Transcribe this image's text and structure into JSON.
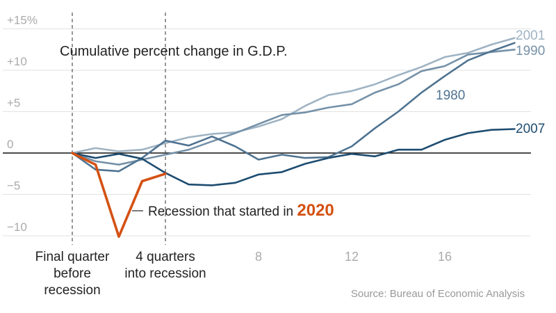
{
  "chart_data": {
    "type": "line",
    "title": "Cumulative percent change in G.D.P.",
    "source": "Source: Bureau of Economic Analysis",
    "xlim": [
      0,
      19
    ],
    "ylim": [
      -11,
      15.5
    ],
    "y_ticks": [
      {
        "value": 15,
        "label": "+15%"
      },
      {
        "value": 10,
        "label": "+10"
      },
      {
        "value": 5,
        "label": "+5"
      },
      {
        "value": 0,
        "label": "0"
      },
      {
        "value": -5,
        "label": "−5"
      },
      {
        "value": -10,
        "label": "−10"
      }
    ],
    "x_ticks": [
      {
        "value": 8,
        "label": "8"
      },
      {
        "value": 12,
        "label": "12"
      },
      {
        "value": 16,
        "label": "16"
      }
    ],
    "markers": [
      {
        "value": 0,
        "lines": [
          "Final quarter",
          "before",
          "recession"
        ]
      },
      {
        "value": 4,
        "lines": [
          "4 quarters",
          "into recession"
        ]
      }
    ],
    "series": [
      {
        "name": "2001",
        "color": "#9fb3c3",
        "x": [
          0,
          1,
          2,
          3,
          4,
          5,
          6,
          7,
          8,
          9,
          10,
          11,
          12,
          13,
          14,
          15,
          16,
          17,
          18,
          19
        ],
        "y": [
          0,
          0.6,
          0.2,
          0.4,
          1.2,
          1.9,
          2.3,
          2.5,
          3.2,
          4.1,
          5.7,
          7.0,
          7.5,
          8.3,
          9.4,
          10.4,
          11.6,
          12.1,
          13.1,
          13.9
        ]
      },
      {
        "name": "1990",
        "color": "#7591a8",
        "x": [
          0,
          1,
          2,
          3,
          4,
          5,
          6,
          7,
          8,
          9,
          10,
          11,
          12,
          13,
          14,
          15,
          16,
          17,
          18,
          19
        ],
        "y": [
          0,
          -1.0,
          -1.4,
          -0.8,
          -0.2,
          0.4,
          1.4,
          2.4,
          3.5,
          4.6,
          4.9,
          5.5,
          5.9,
          7.3,
          8.3,
          9.9,
          10.5,
          11.9,
          12.2,
          12.5
        ]
      },
      {
        "name": "1980",
        "color": "#4f7391",
        "x": [
          0,
          1,
          2,
          3,
          4,
          5,
          6,
          7,
          8,
          9,
          10,
          11,
          12,
          13,
          14,
          15,
          16,
          17,
          18,
          19
        ],
        "y": [
          0,
          -2.0,
          -2.2,
          -0.6,
          1.5,
          0.9,
          2.0,
          0.8,
          -0.8,
          -0.2,
          -0.6,
          -0.5,
          0.8,
          3.0,
          5.0,
          7.3,
          9.3,
          11.2,
          12.3,
          13.3
        ]
      },
      {
        "name": "2007",
        "color": "#1d4c70",
        "x": [
          0,
          1,
          2,
          3,
          4,
          5,
          6,
          7,
          8,
          9,
          10,
          11,
          12,
          13,
          14,
          15,
          16,
          17,
          18,
          19
        ],
        "y": [
          0,
          -0.6,
          -0.1,
          -0.7,
          -2.4,
          -3.8,
          -3.9,
          -3.6,
          -2.6,
          -2.3,
          -1.3,
          -0.6,
          -0.1,
          -0.4,
          0.4,
          0.4,
          1.6,
          2.4,
          2.8,
          2.9
        ]
      },
      {
        "name": "2020",
        "color": "#d45113",
        "x": [
          0,
          1,
          2,
          3,
          4
        ],
        "y": [
          0,
          -1.4,
          -10.1,
          -3.4,
          -2.5
        ]
      }
    ],
    "series_labels": [
      {
        "series": "2001",
        "text": "2001"
      },
      {
        "series": "1990",
        "text": "1990"
      },
      {
        "series": "1980",
        "text": "1980"
      },
      {
        "series": "2007",
        "text": "2007"
      }
    ],
    "annotation_2020": {
      "prefix": "Recession that started in ",
      "year": "2020"
    }
  }
}
